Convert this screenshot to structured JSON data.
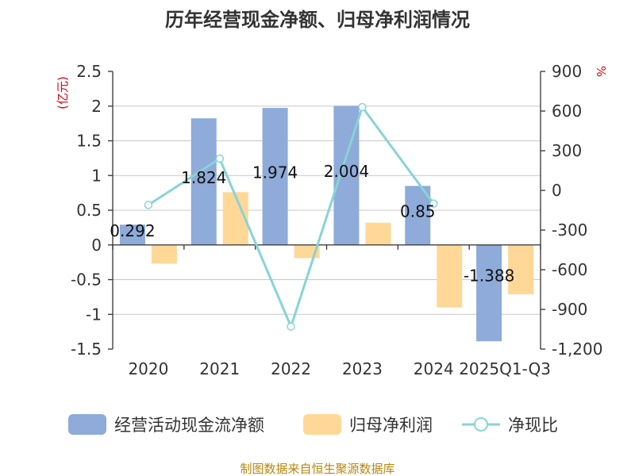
{
  "chart_data": {
    "type": "bar",
    "title": "历年经营现金净额、归母净利润情况",
    "categories": [
      "2020",
      "2021",
      "2022",
      "2023",
      "2024",
      "2025Q1-Q3"
    ],
    "y_left": {
      "unit": "(亿元)",
      "range": [
        -1.5,
        2.5
      ],
      "ticks": [
        "2.5",
        "2",
        "1.5",
        "1",
        "0.5",
        "0",
        "-0.5",
        "-1",
        "-1.5"
      ]
    },
    "y_right": {
      "unit": "%",
      "range": [
        -1200,
        900
      ],
      "ticks": [
        "900",
        "600",
        "300",
        "0",
        "-300",
        "-600",
        "-900",
        "-1,200"
      ]
    },
    "series": [
      {
        "name": "经营活动现金流净额",
        "type": "bar",
        "axis": "left",
        "color": "#8eabd9",
        "values": [
          0.292,
          1.824,
          1.974,
          2.004,
          0.85,
          -1.388
        ],
        "labels": [
          "0.292",
          "1.824",
          "1.974",
          "2.004",
          "0.85",
          "-1.388"
        ]
      },
      {
        "name": "归母净利润",
        "type": "bar",
        "axis": "left",
        "color": "#ffd897",
        "values": [
          -0.27,
          0.76,
          -0.19,
          0.32,
          -0.9,
          -0.71
        ]
      },
      {
        "name": "净现比",
        "type": "line",
        "axis": "right",
        "color": "#88d3d6",
        "values": [
          -110,
          240,
          -1030,
          630,
          -100,
          null
        ]
      }
    ],
    "grid": true,
    "legend_position": "bottom"
  },
  "source": "制图数据来自恒生聚源数据库"
}
